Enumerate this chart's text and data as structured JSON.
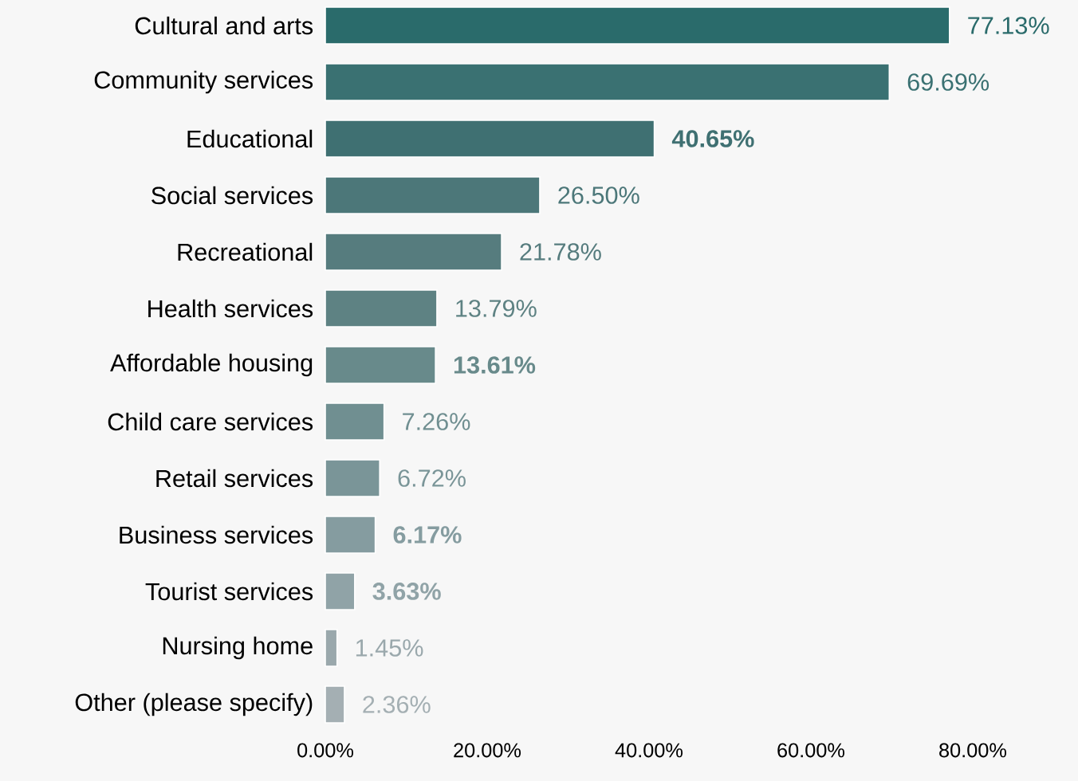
{
  "chart_data": {
    "type": "bar",
    "orientation": "horizontal",
    "categories": [
      "Cultural and arts",
      "Community services",
      "Educational",
      "Social services",
      "Recreational",
      "Health services",
      "Affordable housing",
      "Child care services",
      "Retail services",
      "Business services",
      "Tourist services",
      "Nursing home",
      "Other (please specify)"
    ],
    "values": [
      77.13,
      69.69,
      40.65,
      26.5,
      21.78,
      13.79,
      13.61,
      7.26,
      6.72,
      6.17,
      3.63,
      1.45,
      2.36
    ],
    "value_labels": [
      "77.13%",
      "69.69%",
      "**40.65%**",
      "26.50%",
      "21.78%",
      "13.79%",
      "**13.61%**",
      "7.26%",
      "6.72%",
      "**6.17%**",
      "**3.63%**",
      "1.45%",
      "2.36%"
    ],
    "colors": [
      "#2a6b6b",
      "#3a7172",
      "#3f7072",
      "#4c7779",
      "#567c7e",
      "#5e8283",
      "#688a8b",
      "#708f91",
      "#7a9598",
      "#859ca0",
      "#90a3a7",
      "#9aa8ac",
      "#a4afb3"
    ],
    "xlim": [
      0,
      80
    ],
    "xticks": [
      {
        "value": 0,
        "label": "0.00%"
      },
      {
        "value": 20,
        "label": "20.00%"
      },
      {
        "value": 40,
        "label": "40.00%"
      },
      {
        "value": 60,
        "label": "60.00%"
      },
      {
        "value": 80,
        "label": "80.00%"
      }
    ],
    "grid": false
  }
}
